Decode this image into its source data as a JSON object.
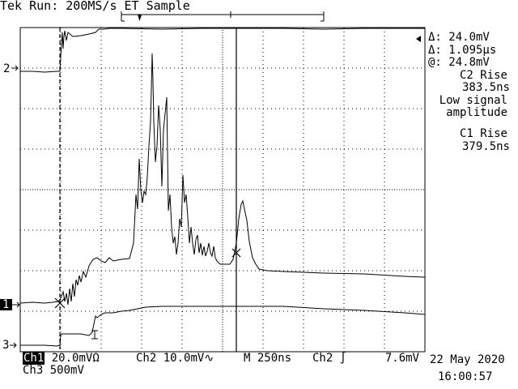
{
  "header": {
    "status": "Tek Run: 200MS/s ET Sample"
  },
  "readout": {
    "delta_v": "Δ: 24.0mV",
    "delta_t": "Δ: 1.095µs",
    "at_v": "@: 24.8mV",
    "c2_rise_label": "C2 Rise",
    "c2_rise_value": "383.5ns",
    "warning_line1": "Low signal",
    "warning_line2": "amplitude",
    "c1_rise_label": "C1 Rise",
    "c1_rise_value": "379.5ns"
  },
  "markers": {
    "ch2": "2",
    "ch1": "1",
    "ch3": "3"
  },
  "footer": {
    "ch1_name": "Ch1",
    "ch1_scale": "20.0mV",
    "ch1_coupling": "Ω",
    "ch2_name": "Ch2",
    "ch2_scale": "10.0mV",
    "ch2_coupling": "∿",
    "timebase_label": "M",
    "timebase_value": "250ns",
    "trigger_source": "Ch2",
    "trigger_slope": "∫",
    "trigger_level": "7.6mV",
    "ch3_name": "Ch3",
    "ch3_scale": "500mV",
    "date": "22 May 2020",
    "time": "16:00:57"
  },
  "colors": {
    "background": "#ffffff",
    "ink": "#000000"
  }
}
